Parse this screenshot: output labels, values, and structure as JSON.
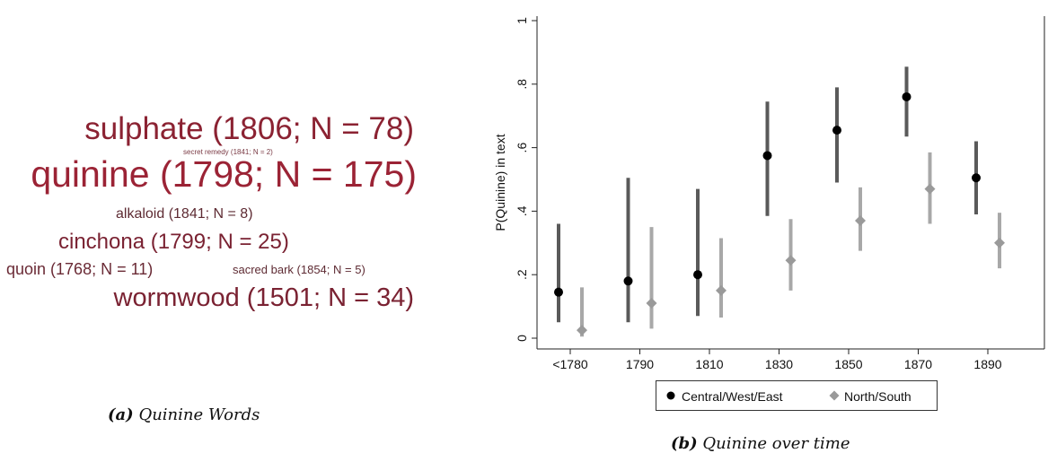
{
  "panel_a": {
    "caption_label": "(a)",
    "caption_text": "Quinine Words",
    "words": [
      {
        "text": "sulphate (1806; N = 78)",
        "color": "#8b2232"
      },
      {
        "text": "secret remedy (1841; N = 2)",
        "color": "#7a3a44"
      },
      {
        "text": "quinine (1798; N = 175)",
        "color": "#9b2335"
      },
      {
        "text": "alkaloid (1841; N = 8)",
        "color": "#5e2b33"
      },
      {
        "text": "cinchona (1799; N = 25)",
        "color": "#7a2232"
      },
      {
        "text": "quoin (1768; N = 11)",
        "color": "#6a2a35"
      },
      {
        "text": "sacred bark (1854; N = 5)",
        "color": "#5e2b33"
      },
      {
        "text": "wormwood (1501; N = 34)",
        "color": "#7a2232"
      }
    ]
  },
  "panel_b": {
    "caption_label": "(b)",
    "caption_text": "Quinine over time"
  },
  "chart_data": {
    "type": "scatter",
    "subtype": "point-with-confidence-interval",
    "categories": [
      "<1780",
      "1790",
      "1810",
      "1830",
      "1850",
      "1870",
      "1890"
    ],
    "ylabel": "P(Quinine) in text",
    "xlabel": "",
    "ylim": [
      0,
      1
    ],
    "y_ticks": [
      0,
      0.2,
      0.4,
      0.6,
      0.8,
      1
    ],
    "y_tick_labels": [
      "0",
      ".2",
      ".4",
      ".6",
      ".8",
      "1"
    ],
    "grid": false,
    "legend_position": "bottom",
    "series": [
      {
        "name": "Central/West/East",
        "marker": "circle",
        "marker_color": "#000000",
        "ci_color": "#5a5a5a",
        "values": [
          0.145,
          0.18,
          0.2,
          0.575,
          0.655,
          0.76,
          0.505
        ],
        "ci_low": [
          0.05,
          0.05,
          0.07,
          0.385,
          0.49,
          0.635,
          0.39
        ],
        "ci_high": [
          0.36,
          0.505,
          0.47,
          0.745,
          0.79,
          0.855,
          0.62
        ]
      },
      {
        "name": "North/South",
        "marker": "diamond",
        "marker_color": "#9a9a9a",
        "ci_color": "#a8a8a8",
        "values": [
          0.025,
          0.11,
          0.15,
          0.245,
          0.37,
          0.47,
          0.3
        ],
        "ci_low": [
          0.005,
          0.03,
          0.065,
          0.15,
          0.275,
          0.36,
          0.22
        ],
        "ci_high": [
          0.16,
          0.35,
          0.315,
          0.375,
          0.475,
          0.585,
          0.395
        ]
      }
    ]
  }
}
